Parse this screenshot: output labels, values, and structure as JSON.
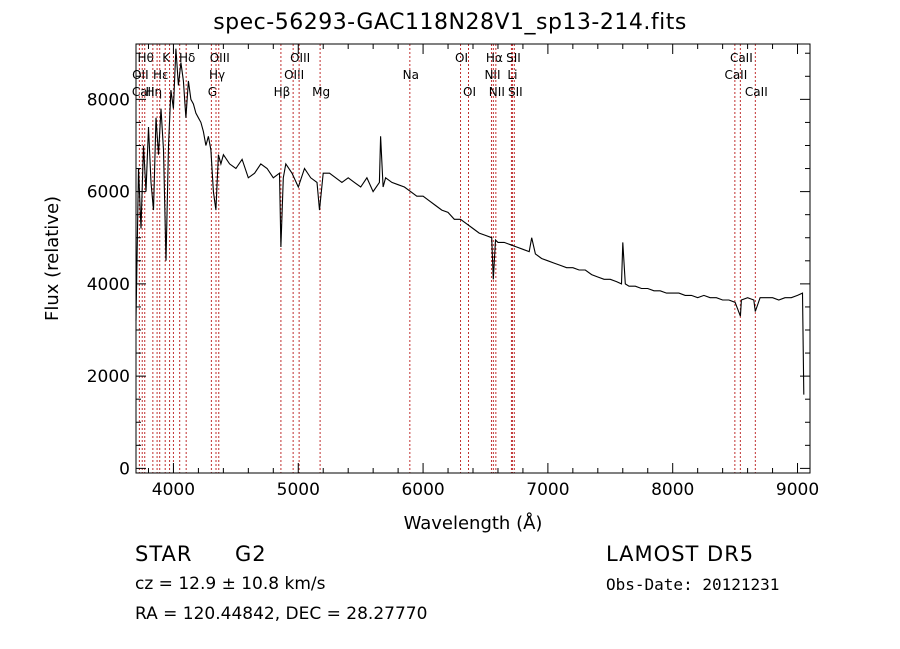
{
  "chart_data": {
    "type": "line",
    "title": "spec-56293-GAC118N28V1_sp13-214.fits",
    "xlabel": "Wavelength (Å)",
    "ylabel": "Flux (relative)",
    "xlim": [
      3700,
      9100
    ],
    "ylim": [
      -100,
      9200
    ],
    "xticks": [
      4000,
      5000,
      6000,
      7000,
      8000,
      9000
    ],
    "yticks": [
      0,
      2000,
      4000,
      6000,
      8000
    ],
    "xtick_labels": [
      "4000",
      "5000",
      "6000",
      "7000",
      "8000",
      "9000"
    ],
    "ytick_labels": [
      "0",
      "2000",
      "4000",
      "6000",
      "8000"
    ],
    "grid": false,
    "line_color": "#000000",
    "marker_color": "#c03030",
    "series": [
      {
        "x": [
          3700,
          3720,
          3740,
          3760,
          3780,
          3800,
          3820,
          3840,
          3860,
          3880,
          3900,
          3920,
          3940,
          3960,
          3980,
          4000,
          4020,
          4040,
          4060,
          4080,
          4100,
          4120,
          4140,
          4160,
          4180,
          4200,
          4220,
          4240,
          4260,
          4280,
          4300,
          4320,
          4340,
          4360,
          4380,
          4400,
          4450,
          4500,
          4550,
          4600,
          4650,
          4700,
          4750,
          4800,
          4850,
          4861,
          4880,
          4900,
          4950,
          5000,
          5050,
          5100,
          5150,
          5170,
          5200,
          5250,
          5300,
          5350,
          5400,
          5450,
          5500,
          5550,
          5600,
          5650,
          5660,
          5680,
          5700,
          5750,
          5800,
          5850,
          5900,
          5950,
          6000,
          6050,
          6100,
          6150,
          6200,
          6250,
          6300,
          6350,
          6400,
          6450,
          6500,
          6550,
          6563,
          6580,
          6600,
          6650,
          6700,
          6750,
          6800,
          6850,
          6870,
          6900,
          6950,
          7000,
          7050,
          7100,
          7150,
          7200,
          7250,
          7300,
          7350,
          7400,
          7450,
          7500,
          7550,
          7590,
          7600,
          7620,
          7650,
          7700,
          7750,
          7800,
          7850,
          7900,
          7950,
          8000,
          8050,
          8100,
          8150,
          8200,
          8250,
          8300,
          8350,
          8400,
          8450,
          8500,
          8542,
          8550,
          8600,
          8650,
          8662,
          8700,
          8750,
          8800,
          8850,
          8900,
          8950,
          9000,
          9040,
          9050
        ],
        "y": [
          3200,
          6500,
          5200,
          7000,
          6000,
          7400,
          6200,
          5600,
          7600,
          6800,
          7800,
          6900,
          4500,
          7000,
          8200,
          7800,
          9100,
          8300,
          8800,
          8400,
          7600,
          8400,
          8000,
          7900,
          7700,
          7600,
          7500,
          7300,
          7000,
          7200,
          6900,
          6000,
          5600,
          6800,
          6600,
          6800,
          6600,
          6500,
          6700,
          6300,
          6400,
          6600,
          6500,
          6300,
          6400,
          4800,
          6300,
          6600,
          6400,
          6100,
          6500,
          6300,
          6200,
          5600,
          6400,
          6400,
          6300,
          6200,
          6300,
          6200,
          6100,
          6300,
          6000,
          6200,
          7200,
          6100,
          6300,
          6200,
          6150,
          6100,
          6000,
          5900,
          5900,
          5800,
          5700,
          5600,
          5550,
          5400,
          5400,
          5300,
          5200,
          5100,
          5050,
          5000,
          4100,
          4950,
          4900,
          4900,
          4850,
          4800,
          4750,
          4700,
          5000,
          4650,
          4550,
          4500,
          4450,
          4400,
          4350,
          4350,
          4300,
          4300,
          4200,
          4150,
          4100,
          4100,
          4050,
          4000,
          4900,
          4000,
          3950,
          3950,
          3900,
          3900,
          3850,
          3850,
          3800,
          3800,
          3800,
          3750,
          3750,
          3700,
          3750,
          3700,
          3700,
          3650,
          3650,
          3600,
          3300,
          3650,
          3700,
          3650,
          3400,
          3700,
          3700,
          3700,
          3650,
          3700,
          3700,
          3750,
          3800,
          1600
        ]
      }
    ],
    "line_markers": [
      {
        "x": 3727,
        "label": "OII",
        "row": 1
      },
      {
        "x": 3750,
        "label": "CaII",
        "row": 2
      },
      {
        "x": 3770,
        "label": "Hθ",
        "row": 0
      },
      {
        "x": 3835,
        "label": "Hη",
        "row": 2
      },
      {
        "x": 3869,
        "label": "",
        "row": 1
      },
      {
        "x": 3890,
        "label": "Hε",
        "row": 1
      },
      {
        "x": 3934,
        "label": "K",
        "row": 0
      },
      {
        "x": 3969,
        "label": "",
        "row": 1
      },
      {
        "x": 4000,
        "label": "",
        "row": 2
      },
      {
        "x": 4050,
        "label": "",
        "row": 0
      },
      {
        "x": 4102,
        "label": "Hδ",
        "row": 0
      },
      {
        "x": 4304,
        "label": "G",
        "row": 2
      },
      {
        "x": 4341,
        "label": "Hγ",
        "row": 1
      },
      {
        "x": 4363,
        "label": "OIII",
        "row": 0
      },
      {
        "x": 4861,
        "label": "Hβ",
        "row": 2
      },
      {
        "x": 4959,
        "label": "OIII",
        "row": 1
      },
      {
        "x": 5007,
        "label": "OIII",
        "row": 0
      },
      {
        "x": 5175,
        "label": "Mg",
        "row": 2
      },
      {
        "x": 5894,
        "label": "Na",
        "row": 1
      },
      {
        "x": 6300,
        "label": "OI",
        "row": 0
      },
      {
        "x": 6364,
        "label": "OI",
        "row": 2
      },
      {
        "x": 6548,
        "label": "NII",
        "row": 1
      },
      {
        "x": 6563,
        "label": "Hα",
        "row": 0
      },
      {
        "x": 6583,
        "label": "NII",
        "row": 2
      },
      {
        "x": 6708,
        "label": "Li",
        "row": 1
      },
      {
        "x": 6716,
        "label": "SII",
        "row": 0
      },
      {
        "x": 6731,
        "label": "SII",
        "row": 2
      },
      {
        "x": 8498,
        "label": "CaII",
        "row": 1
      },
      {
        "x": 8542,
        "label": "CaII",
        "row": 0
      },
      {
        "x": 8662,
        "label": "CaII",
        "row": 2
      }
    ]
  },
  "info": {
    "class": "STAR",
    "subclass": "G2",
    "survey": "LAMOST DR5",
    "cz": "cz = 12.9 ± 10.8 km/s",
    "obs_date": "Obs-Date: 20121231",
    "radec": "RA = 120.44842, DEC =  28.27770"
  }
}
